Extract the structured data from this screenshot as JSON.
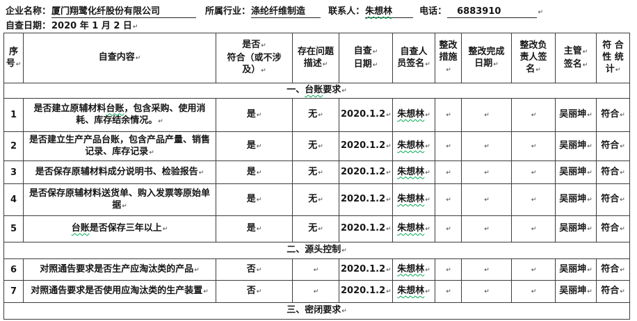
{
  "marks": {
    "pilcrow": "↵"
  },
  "colors": {
    "spellcheck_squiggle": "#00a651",
    "table_border": "#3b3b3b",
    "text": "#161616",
    "form_underline": "#222222"
  },
  "header": {
    "fields": [
      {
        "label": "企业名称：",
        "value": "厦门翔鹭化纤股份有限公司"
      },
      {
        "label": "所属行业：",
        "value": "涤纶纤维制造"
      },
      {
        "label": "联系人：",
        "value": "朱想林"
      },
      {
        "label": "电话：",
        "value": "6883910"
      }
    ],
    "date_line": {
      "label": "自查日期：",
      "value": "2020 年 1 月 2 日"
    }
  },
  "table": {
    "columns": [
      {
        "id": "seq",
        "lines": [
          {
            "t": "序",
            "m": false
          },
          {
            "t": "号",
            "m": true
          }
        ]
      },
      {
        "id": "content",
        "lines": [
          {
            "t": "自查内容",
            "m": true
          }
        ]
      },
      {
        "id": "compliant",
        "lines": [
          {
            "t": "是否",
            "m": true
          },
          {
            "t": "符合（或不涉",
            "m": false
          },
          {
            "t": "及）",
            "m": true
          }
        ]
      },
      {
        "id": "problem",
        "lines": [
          {
            "t": "存在问题",
            "m": false
          },
          {
            "t": "描述",
            "m": true
          }
        ]
      },
      {
        "id": "date",
        "lines": [
          {
            "t": "自查",
            "m": true
          },
          {
            "t": "日期",
            "m": true
          }
        ]
      },
      {
        "id": "inspector",
        "lines": [
          {
            "t": "自查人",
            "m": false
          },
          {
            "t": "员签名",
            "m": true
          }
        ]
      },
      {
        "id": "measures",
        "lines": [
          {
            "t": "整改",
            "m": false
          },
          {
            "t": "措施",
            "m": true
          }
        ]
      },
      {
        "id": "deadline",
        "lines": [
          {
            "t": "整改完成",
            "m": false
          },
          {
            "t": "日期",
            "m": true
          }
        ]
      },
      {
        "id": "responsible",
        "lines": [
          {
            "t": "整改负",
            "m": false
          },
          {
            "t": "责人签",
            "m": false
          },
          {
            "t": "名",
            "m": true
          }
        ]
      },
      {
        "id": "supervisor",
        "lines": [
          {
            "t": "主管",
            "m": true
          },
          {
            "t": "签名",
            "m": true
          }
        ]
      },
      {
        "id": "conclusion",
        "lines": [
          {
            "t": "符 合",
            "m": false
          },
          {
            "t": "性 统",
            "m": false
          },
          {
            "t": "计",
            "m": true
          }
        ]
      }
    ],
    "body": [
      {
        "type": "section",
        "pre": "一、",
        "wavy": "台账",
        "post": "要求"
      },
      {
        "type": "row",
        "seq": "1",
        "content": {
          "pre": "是否建立原辅材料",
          "wavy": "台账",
          "post": "，包含采购、使用消耗、库存结余情况。"
        },
        "compliant": "是",
        "problem": "无",
        "date": "2020.1.2",
        "inspector": "朱想林",
        "measures": "",
        "deadline": "",
        "responsible": "",
        "supervisor": "吴丽坤",
        "conclusion": "符合"
      },
      {
        "type": "row",
        "seq": "2",
        "content": {
          "pre": "是否建立生产产品台账，包含产品产量、销售记录、库存记录",
          "wavy": "",
          "post": ""
        },
        "compliant": "是",
        "problem": "无",
        "date": "2020.1.2",
        "inspector": "朱想林",
        "measures": "",
        "deadline": "",
        "responsible": "",
        "supervisor": "吴丽坤",
        "conclusion": "符合"
      },
      {
        "type": "row",
        "seq": "3",
        "content": {
          "pre": "是否保存原辅材料成分说明书、检验报告",
          "wavy": "",
          "post": ""
        },
        "compliant": "是",
        "problem": "无",
        "date": "2020.1.2",
        "inspector": "朱想林",
        "measures": "",
        "deadline": "",
        "responsible": "",
        "supervisor": "吴丽坤",
        "conclusion": "符合"
      },
      {
        "type": "row",
        "seq": "4",
        "content": {
          "pre": "是否保存原辅材料送货单、购入发票等原始单据",
          "wavy": "",
          "post": ""
        },
        "compliant": "是",
        "problem": "无",
        "date": "2020.1.2",
        "inspector": "朱想林",
        "measures": "",
        "deadline": "",
        "responsible": "",
        "supervisor": "吴丽坤",
        "conclusion": "符合"
      },
      {
        "type": "row",
        "seq": "5",
        "content": {
          "pre": "",
          "wavy": "台账",
          "post": "是否保存三年以上"
        },
        "compliant": "是",
        "problem": "无",
        "date": "2020.1.2",
        "inspector": "朱想林",
        "measures": "",
        "deadline": "",
        "responsible": "",
        "supervisor": "吴丽坤",
        "conclusion": "符合"
      },
      {
        "type": "section",
        "pre": "二、源头控制",
        "wavy": "",
        "post": ""
      },
      {
        "type": "row",
        "seq": "6",
        "content": {
          "pre": "对照通告要求是否生产应淘汰类的产品",
          "wavy": "",
          "post": ""
        },
        "compliant": "否",
        "problem": "",
        "date": "2020.1.2",
        "inspector": "朱想林",
        "measures": "",
        "deadline": "",
        "responsible": "",
        "supervisor": "吴丽坤",
        "conclusion": "符合"
      },
      {
        "type": "row",
        "seq": "7",
        "content": {
          "pre": "对照通告要求是否使用应淘汰类的生产装置",
          "wavy": "",
          "post": ""
        },
        "compliant": "否",
        "problem": "",
        "date": "2020.1.2",
        "inspector": "朱想林",
        "measures": "",
        "deadline": "",
        "responsible": "",
        "supervisor": "吴丽坤",
        "conclusion": "符合"
      },
      {
        "type": "section",
        "pre": "三、密闭要求",
        "wavy": "",
        "post": ""
      }
    ]
  }
}
